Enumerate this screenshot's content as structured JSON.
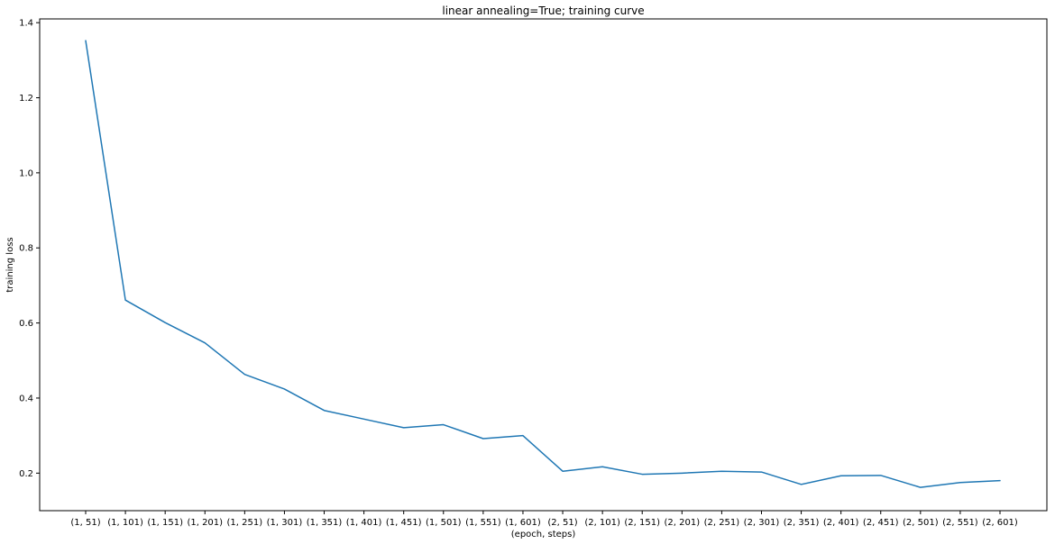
{
  "chart_data": {
    "type": "line",
    "title": "linear annealing=True; training curve",
    "xlabel": "(epoch, steps)",
    "ylabel": "training loss",
    "categories": [
      "(1, 51)",
      "(1, 101)",
      "(1, 151)",
      "(1, 201)",
      "(1, 251)",
      "(1, 301)",
      "(1, 351)",
      "(1, 401)",
      "(1, 451)",
      "(1, 501)",
      "(1, 551)",
      "(1, 601)",
      "(2, 51)",
      "(2, 101)",
      "(2, 151)",
      "(2, 201)",
      "(2, 251)",
      "(2, 301)",
      "(2, 351)",
      "(2, 401)",
      "(2, 451)",
      "(2, 501)",
      "(2, 551)",
      "(2, 601)"
    ],
    "series": [
      {
        "color": "#1f77b4",
        "values": [
          1.352,
          0.661,
          0.601,
          0.547,
          0.463,
          0.424,
          0.367,
          0.344,
          0.321,
          0.329,
          0.292,
          0.3,
          0.205,
          0.217,
          0.197,
          0.2,
          0.205,
          0.203,
          0.17,
          0.193,
          0.194,
          0.162,
          0.175,
          0.18
        ]
      }
    ],
    "ylim": [
      0.1,
      1.41
    ],
    "yticks": [
      0.2,
      0.4,
      0.6,
      0.8,
      1.0,
      1.2,
      1.4
    ],
    "ytick_labels": [
      "0.2",
      "0.4",
      "0.6",
      "0.8",
      "1.0",
      "1.2",
      "1.4"
    ],
    "grid": false,
    "legend": "none"
  }
}
